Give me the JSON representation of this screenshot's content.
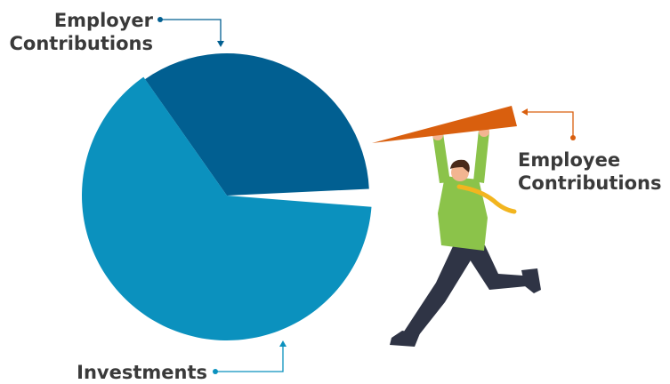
{
  "chart_data": {
    "type": "pie",
    "title": "",
    "slices": [
      {
        "name": "Employer Contributions",
        "value": 34,
        "color": "#015F91"
      },
      {
        "name": "Employee Contributions",
        "value": 2,
        "color": "#D95F0E",
        "exploded": true
      },
      {
        "name": "Investments",
        "value": 64,
        "color": "#0B91BE"
      }
    ]
  },
  "labels": {
    "employer": "Employer\nContributions",
    "employee": "Employee\nContributions",
    "investments": "Investments"
  },
  "colors": {
    "text": "#3A3A3A",
    "employer": "#015F91",
    "employee": "#D95F0E",
    "investments": "#0B91BE",
    "shirt": "#8BC34A",
    "pants": "#2F3445",
    "tie": "#F2B51F",
    "skin": "#F2B591",
    "hair": "#4A2A1A"
  },
  "illustration": {
    "figure": "running-man-holding-slice-icon"
  }
}
